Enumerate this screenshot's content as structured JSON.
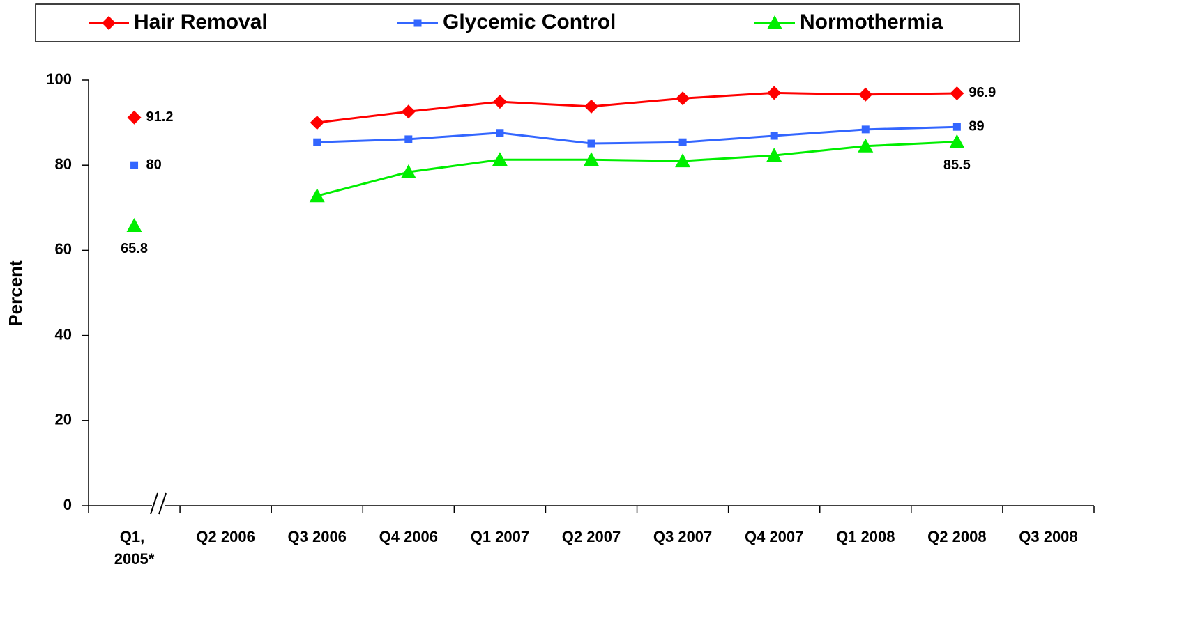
{
  "chart_data": {
    "type": "line",
    "y_label": "Percent",
    "categories": [
      "Q1, 2005*",
      "Q2 2006",
      "Q3 2006",
      "Q4 2006",
      "Q1 2007",
      "Q2 2007",
      "Q3 2007",
      "Q4 2007",
      "Q1 2008",
      "Q2 2008",
      "Q3 2008"
    ],
    "series": [
      {
        "name": "Hair Removal",
        "color": "#ff0000",
        "marker": "diamond",
        "label_position": "right",
        "values": [
          91.2,
          null,
          90.0,
          92.6,
          94.9,
          93.8,
          95.7,
          97.0,
          96.6,
          96.9,
          null
        ],
        "value_labels": [
          "91.2",
          null,
          null,
          null,
          null,
          null,
          null,
          null,
          null,
          "96.9",
          null
        ]
      },
      {
        "name": "Glycemic Control",
        "color": "#3366ff",
        "marker": "square",
        "label_position": "right",
        "values": [
          80,
          null,
          85.4,
          86.1,
          87.6,
          85.1,
          85.4,
          86.9,
          88.4,
          89,
          null
        ],
        "value_labels": [
          "80",
          null,
          null,
          null,
          null,
          null,
          null,
          null,
          null,
          "89",
          null
        ]
      },
      {
        "name": "Normothermia",
        "color": "#00ee00",
        "marker": "triangle",
        "label_position": "below",
        "values": [
          65.8,
          null,
          72.8,
          78.4,
          81.3,
          81.3,
          81.0,
          82.3,
          84.5,
          85.5,
          null
        ],
        "value_labels": [
          "65.8",
          null,
          null,
          null,
          null,
          null,
          null,
          null,
          null,
          "85.5",
          null
        ]
      }
    ],
    "ylim": [
      0,
      100
    ],
    "yticks": [
      0,
      20,
      40,
      60,
      80,
      100
    ],
    "grid": false,
    "legend": "top"
  }
}
